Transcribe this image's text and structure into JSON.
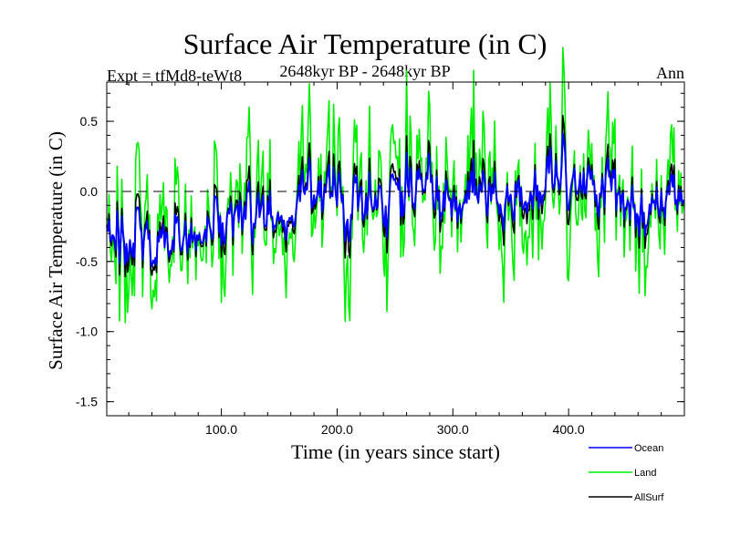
{
  "chart_data": {
    "type": "line",
    "title": "Surface Air Temperature (in C)",
    "subtitle": "2648kyr BP - 2648kyr BP",
    "experiment": "Expt = tfMd8-teWt8",
    "season": "Ann",
    "xlabel": "Time (in years since start)",
    "ylabel": "Surface Air Temperature (in C)",
    "xlim": [
      1,
      500
    ],
    "ylim": [
      -1.6,
      0.78
    ],
    "xticks": [
      100,
      200,
      300,
      400
    ],
    "xtick_labels": [
      "100.0",
      "200.0",
      "300.0",
      "400.0"
    ],
    "yticks": [
      -1.5,
      -1.0,
      -0.5,
      0.0,
      0.5
    ],
    "ytick_labels": [
      "-1.5",
      "-1.0",
      "-0.5",
      "0.0",
      "0.5"
    ],
    "reference_line": {
      "y": 0.0,
      "style": "dashed"
    },
    "trend_anchors": {
      "x": [
        1,
        20,
        45,
        70,
        85,
        100,
        130,
        165,
        180,
        200,
        230,
        260,
        280,
        300,
        330,
        370,
        400,
        430,
        460,
        480,
        500
      ],
      "y": [
        -0.28,
        -0.32,
        -0.4,
        -0.34,
        -0.3,
        -0.18,
        -0.2,
        -0.12,
        0.0,
        -0.06,
        -0.1,
        -0.02,
        0.05,
        -0.12,
        -0.06,
        0.05,
        0.12,
        0.02,
        -0.12,
        -0.06,
        -0.05
      ]
    },
    "noise_seed": 2648,
    "series": [
      {
        "name": "Ocean",
        "color": "#0000ff",
        "amplitude": 0.6,
        "noise_seed": 2648,
        "layer": "top"
      },
      {
        "name": "Land",
        "color": "#00ee00",
        "amplitude": 1.8,
        "noise_seed": 2648,
        "layer": "bottom"
      },
      {
        "name": "AllSurf",
        "color": "#000000",
        "amplitude": 0.85,
        "noise_seed": 2648,
        "layer": "middle"
      }
    ],
    "legend": [
      "Ocean",
      "Land",
      "AllSurf"
    ],
    "legend_position": "bottom-right"
  }
}
